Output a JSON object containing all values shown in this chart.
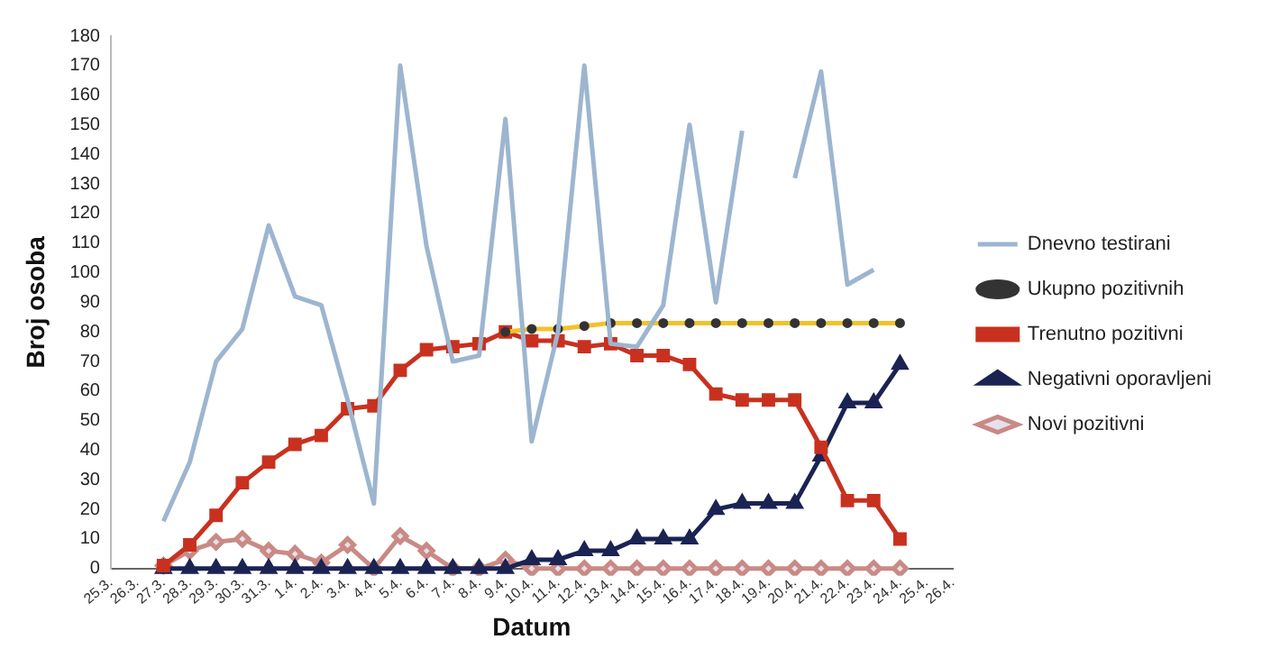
{
  "chart_data": {
    "type": "line",
    "xlabel": "Datum",
    "ylabel": "Broj osoba",
    "categories": [
      "25.3.",
      "26.3.",
      "27.3.",
      "28.3.",
      "29.3.",
      "30.3.",
      "31.3.",
      "1.4.",
      "2.4.",
      "3.4.",
      "4.4.",
      "5.4.",
      "6.4.",
      "7.4.",
      "8.4.",
      "9.4.",
      "10.4.",
      "11.4.",
      "12.4.",
      "13.4.",
      "14.4.",
      "15.4.",
      "16.4.",
      "17.4.",
      "18.4.",
      "19.4.",
      "20.4.",
      "21.4.",
      "22.4.",
      "23.4.",
      "24.4.",
      "25.4.",
      "26.4."
    ],
    "ylim": [
      0,
      180
    ],
    "yticks": [
      0,
      10,
      20,
      30,
      40,
      50,
      60,
      70,
      80,
      90,
      100,
      110,
      120,
      130,
      140,
      150,
      160,
      170,
      180
    ],
    "grid": false,
    "legend": "right",
    "series": [
      {
        "name": "Dnevno testirani",
        "color": "#9db5cf",
        "marker": "none",
        "values": [
          null,
          null,
          16,
          36,
          70,
          81,
          116,
          92,
          89,
          57,
          22,
          170,
          109,
          70,
          72,
          152,
          43,
          80,
          170,
          76,
          75,
          89,
          150,
          90,
          148,
          null,
          132,
          168,
          96,
          101,
          null,
          null,
          null
        ]
      },
      {
        "name": "Ukupno pozitivnih",
        "color": "#f2c12e",
        "marker": "circle",
        "values": [
          null,
          null,
          null,
          null,
          null,
          null,
          null,
          null,
          null,
          null,
          null,
          null,
          null,
          null,
          null,
          80,
          81,
          81,
          82,
          83,
          83,
          83,
          83,
          83,
          83,
          83,
          83,
          83,
          83,
          83,
          83,
          null,
          null
        ]
      },
      {
        "name": "Trenutno pozitivni",
        "color": "#c8311f",
        "marker": "square",
        "values": [
          null,
          null,
          1,
          8,
          18,
          29,
          36,
          42,
          45,
          54,
          55,
          67,
          74,
          75,
          76,
          80,
          77,
          77,
          75,
          76,
          72,
          72,
          69,
          59,
          57,
          57,
          57,
          41,
          23,
          23,
          10,
          null,
          null
        ]
      },
      {
        "name": "Negativni oporavljeni",
        "color": "#1b2353",
        "marker": "triangle",
        "values": [
          null,
          null,
          0,
          0,
          0,
          0,
          0,
          0,
          0,
          0,
          0,
          0,
          0,
          0,
          0,
          0,
          3,
          3,
          6,
          6,
          10,
          10,
          10,
          20,
          22,
          22,
          22,
          38,
          56,
          56,
          69,
          null,
          null
        ]
      },
      {
        "name": "Novi pozitivni",
        "color": "#c98a85",
        "marker": "diamond",
        "values": [
          null,
          null,
          1,
          6,
          9,
          10,
          6,
          5,
          2,
          8,
          0,
          11,
          6,
          0,
          0,
          3,
          0,
          0,
          0,
          0,
          0,
          0,
          0,
          0,
          0,
          0,
          0,
          0,
          0,
          0,
          0,
          null,
          null
        ]
      }
    ]
  }
}
